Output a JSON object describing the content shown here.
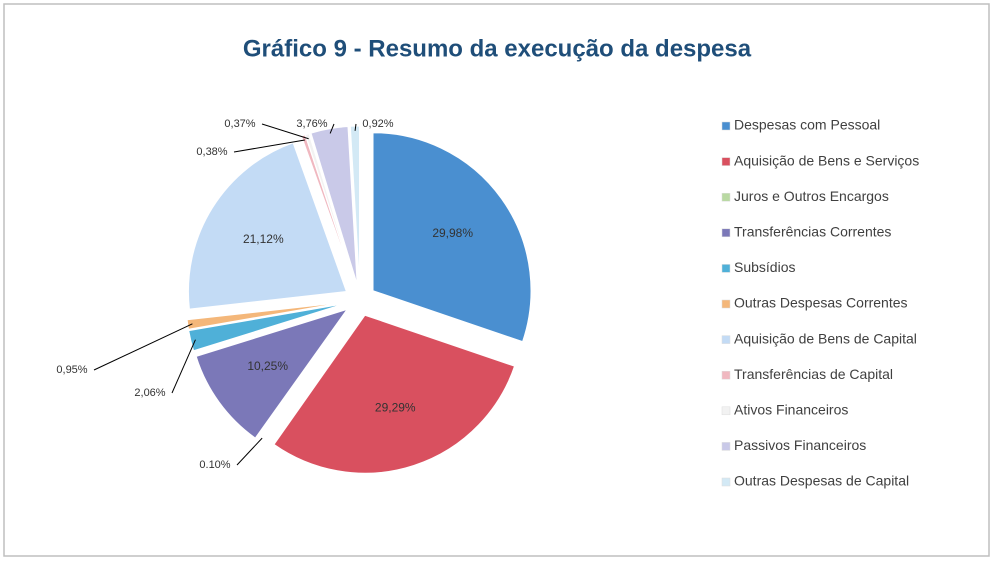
{
  "chart_data": {
    "type": "pie",
    "title": "Gráfico 9 - Resumo da execução da despesa",
    "categories": [
      "Despesas com Pessoal",
      "Aquisição de Bens e Serviços",
      "Juros e Outros Encargos",
      "Transferências Correntes",
      "Subsídios",
      "Outras Despesas Correntes",
      "Aquisição de Bens de Capital",
      "Transferências de Capital",
      "Ativos Financeiros",
      "Passivos Financeiros",
      "Outras Despesas de Capital"
    ],
    "values": [
      29.98,
      29.29,
      0.1,
      10.25,
      2.06,
      0.95,
      21.12,
      0.38,
      0.37,
      3.76,
      0.92
    ],
    "value_labels": [
      "29,98%",
      "29,29%",
      "0.10%",
      "10,25%",
      "2,06%",
      "0,95%",
      "21,12%",
      "0,38%",
      "0,37%",
      "3,76%",
      "0,92%"
    ],
    "colors": [
      "#4a8fd0",
      "#d9505f",
      "#b9d9a2",
      "#7b78b8",
      "#4fb0d8",
      "#f4b77a",
      "#c3dbf5",
      "#f0b8c0",
      "#f2f2f2",
      "#c9c9e8",
      "#d3e9f5"
    ],
    "legend": "right"
  }
}
